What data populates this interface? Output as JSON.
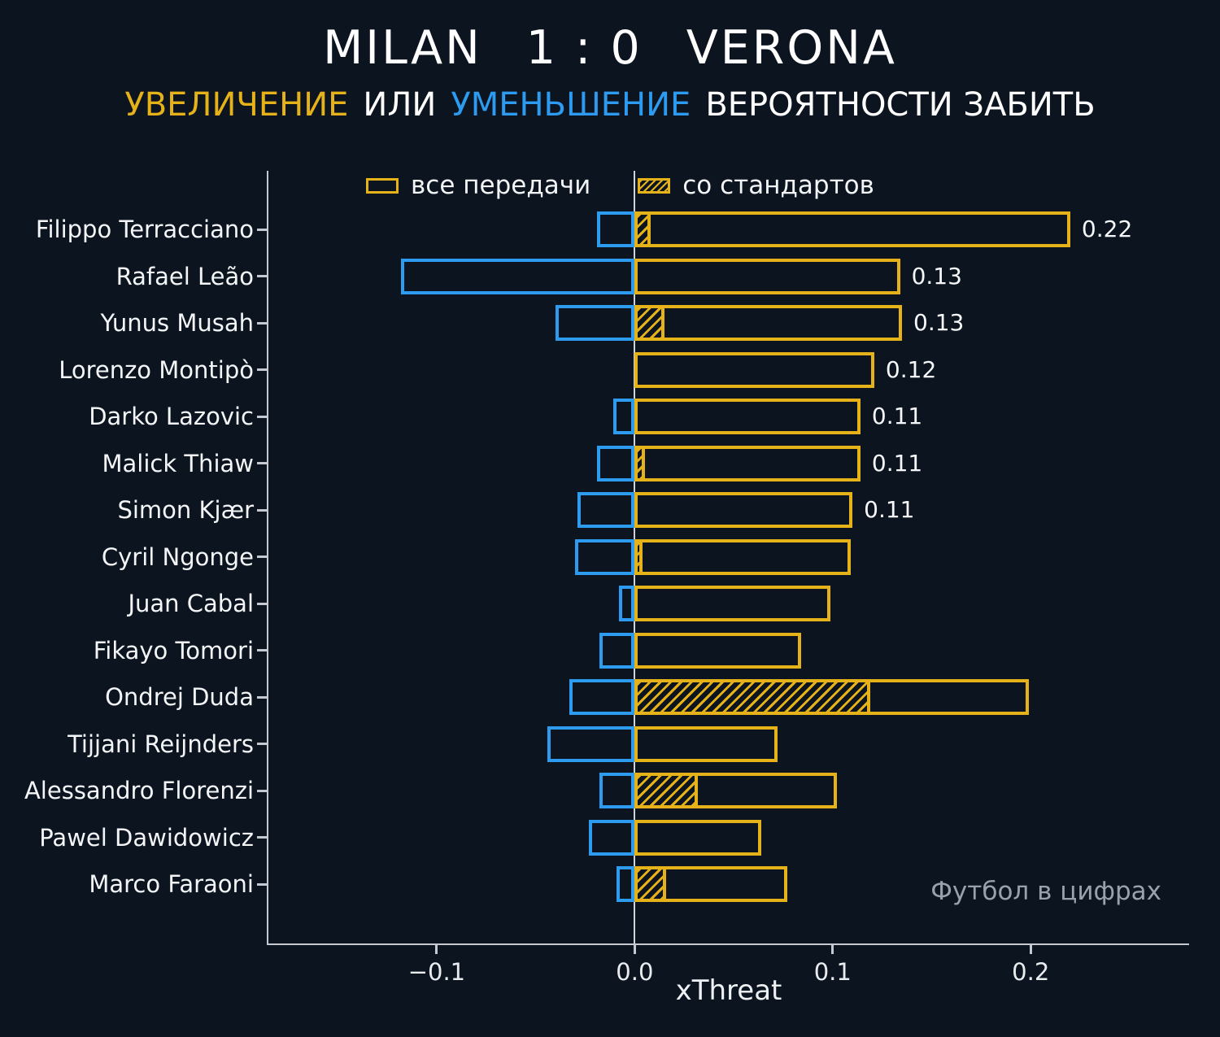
{
  "header": {
    "home_team": "MILAN",
    "score": "1 : 0",
    "away_team": "VERONA",
    "subtitle": {
      "increase_word": "УВЕЛИЧЕНИЕ",
      "or_word": "ИЛИ",
      "decrease_word": "УМЕНЬШЕНИЕ",
      "rest": "ВЕРОЯТНОСТИ ЗАБИТЬ"
    }
  },
  "footer": {
    "watermark": "Футбол в цифрах"
  },
  "chart_data": {
    "type": "bar",
    "orientation": "horizontal",
    "title": "MILAN 1 : 0 VERONA — УВЕЛИЧЕНИЕ ИЛИ УМЕНЬШЕНИЕ ВЕРОЯТНОСТИ ЗАБИТЬ",
    "xlabel": "xThreat",
    "xlim": [
      -0.185,
      0.28
    ],
    "x_ticks": [
      {
        "value": -0.1,
        "label": "−0.1"
      },
      {
        "value": 0.0,
        "label": "0.0"
      },
      {
        "value": 0.1,
        "label": "0.1"
      },
      {
        "value": 0.2,
        "label": "0.2"
      }
    ],
    "legend": {
      "all_passes": "все передачи",
      "set_pieces": "со стандартов"
    },
    "legend_position": "top-inside",
    "grid": false,
    "colors": {
      "increase": "#e6b219",
      "decrease": "#2d9bf0",
      "background": "#0c1420",
      "axis": "#c6cad0"
    },
    "players": [
      {
        "name": "Filippo Terracciano",
        "increase": 0.22,
        "decrease": -0.019,
        "set_piece": 0.008,
        "label": "0.22"
      },
      {
        "name": "Rafael Leão",
        "increase": 0.134,
        "decrease": -0.118,
        "set_piece": 0,
        "label": "0.13"
      },
      {
        "name": "Yunus Musah",
        "increase": 0.135,
        "decrease": -0.04,
        "set_piece": 0.015,
        "label": "0.13"
      },
      {
        "name": "Lorenzo Montipò",
        "increase": 0.121,
        "decrease": 0,
        "set_piece": 0,
        "label": "0.12"
      },
      {
        "name": "Darko Lazovic",
        "increase": 0.114,
        "decrease": -0.011,
        "set_piece": 0,
        "label": "0.11"
      },
      {
        "name": "Malick Thiaw",
        "increase": 0.114,
        "decrease": -0.019,
        "set_piece": 0.005,
        "label": "0.11"
      },
      {
        "name": "Simon Kjær",
        "increase": 0.11,
        "decrease": -0.029,
        "set_piece": 0,
        "label": "0.11"
      },
      {
        "name": "Cyril Ngonge",
        "increase": 0.109,
        "decrease": -0.03,
        "set_piece": 0.004,
        "label": ""
      },
      {
        "name": "Juan Cabal",
        "increase": 0.099,
        "decrease": -0.008,
        "set_piece": 0,
        "label": ""
      },
      {
        "name": "Fikayo Tomori",
        "increase": 0.084,
        "decrease": -0.018,
        "set_piece": 0,
        "label": ""
      },
      {
        "name": "Ondrej Duda",
        "increase": 0.199,
        "decrease": -0.033,
        "set_piece": 0.119,
        "label": ""
      },
      {
        "name": "Tijjani Reijnders",
        "increase": 0.072,
        "decrease": -0.044,
        "set_piece": 0,
        "label": ""
      },
      {
        "name": "Alessandro Florenzi",
        "increase": 0.102,
        "decrease": -0.018,
        "set_piece": 0.032,
        "label": ""
      },
      {
        "name": "Pawel Dawidowicz",
        "increase": 0.064,
        "decrease": -0.023,
        "set_piece": 0,
        "label": ""
      },
      {
        "name": "Marco Faraoni",
        "increase": 0.077,
        "decrease": -0.009,
        "set_piece": 0.016,
        "label": ""
      }
    ]
  }
}
